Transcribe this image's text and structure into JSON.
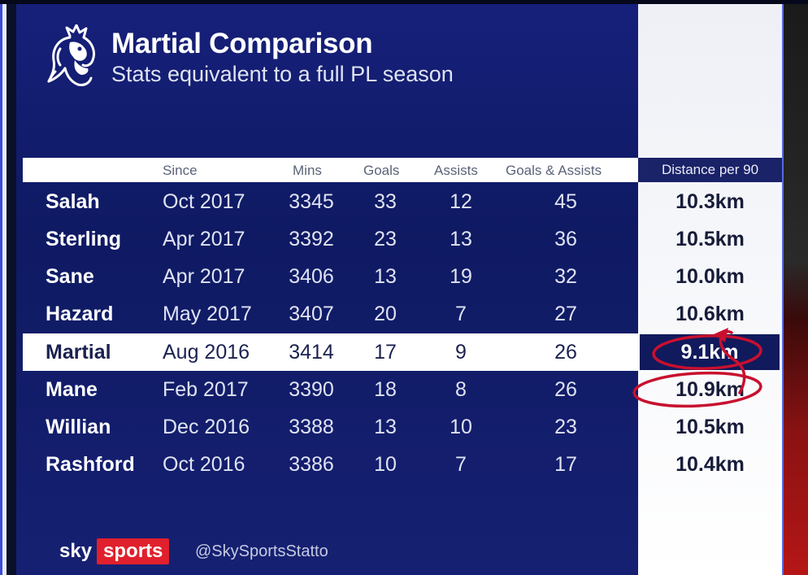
{
  "title": "Martial Comparison",
  "subtitle": "Stats equivalent to a full PL season",
  "headers": {
    "since": "Since",
    "mins": "Mins",
    "goals": "Goals",
    "assists": "Assists",
    "goals_assists": "Goals & Assists",
    "distance": "Distance per 90"
  },
  "rows": [
    {
      "name": "Salah",
      "since": "Oct 2017",
      "mins": "3345",
      "goals": "33",
      "assists": "12",
      "ga": "45",
      "distance": "10.3km"
    },
    {
      "name": "Sterling",
      "since": "Apr 2017",
      "mins": "3392",
      "goals": "23",
      "assists": "13",
      "ga": "36",
      "distance": "10.5km"
    },
    {
      "name": "Sane",
      "since": "Apr 2017",
      "mins": "3406",
      "goals": "13",
      "assists": "19",
      "ga": "32",
      "distance": "10.0km"
    },
    {
      "name": "Hazard",
      "since": "May 2017",
      "mins": "3407",
      "goals": "20",
      "assists": "7",
      "ga": "27",
      "distance": "10.6km"
    },
    {
      "name": "Martial",
      "since": "Aug 2016",
      "mins": "3414",
      "goals": "17",
      "assists": "9",
      "ga": "26",
      "distance": "9.1km"
    },
    {
      "name": "Mane",
      "since": "Feb 2017",
      "mins": "3390",
      "goals": "18",
      "assists": "8",
      "ga": "26",
      "distance": "10.9km"
    },
    {
      "name": "Willian",
      "since": "Dec 2016",
      "mins": "3388",
      "goals": "13",
      "assists": "10",
      "ga": "23",
      "distance": "10.5km"
    },
    {
      "name": "Rashford",
      "since": "Oct 2016",
      "mins": "3386",
      "goals": "10",
      "assists": "7",
      "ga": "17",
      "distance": "10.4km"
    }
  ],
  "highlighted_player": "Martial",
  "footer": {
    "logo_sky": "sky",
    "logo_sports": "sports",
    "handle": "@SkySportsStatto"
  },
  "colors": {
    "board": "#16207a",
    "highlight_cell": "#111a5c",
    "annotation": "#c8102e",
    "sports_red": "#e0202c"
  },
  "icons": [
    "premier-league-lion-icon"
  ]
}
